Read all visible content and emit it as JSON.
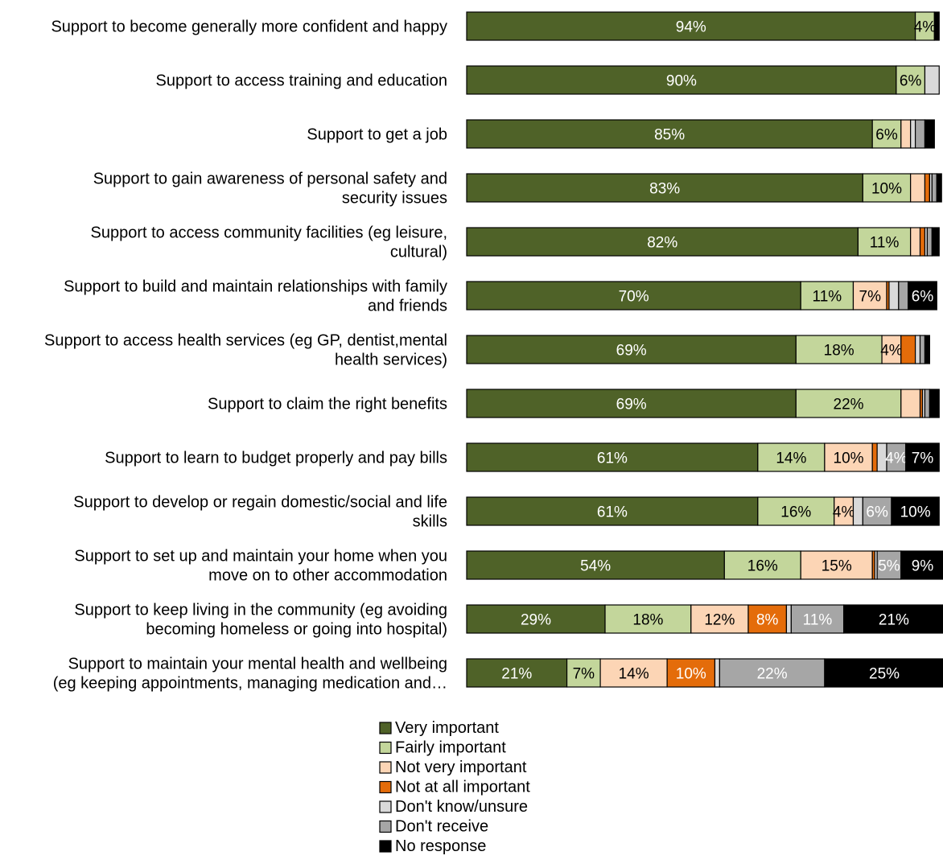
{
  "chart_data": {
    "type": "bar",
    "orientation": "horizontal",
    "stacked": true,
    "xlim": [
      0,
      100
    ],
    "grid": false,
    "legend_position": "bottom",
    "categories": [
      "Support to become generally more confident and happy",
      "Support to access training and education",
      "Support to get a job",
      "Support to gain awareness of personal safety and security issues",
      "Support to access community facilities (eg leisure, cultural)",
      "Support to build and maintain relationships with family and friends",
      "Support to access health services (eg GP, dentist,mental health services)",
      "Support to claim the right benefits",
      "Support to learn to budget properly and pay bills",
      "Support to develop or regain domestic/social and life skills",
      "Support to set up and maintain your home when you move on to other accommodation",
      "Support to keep living in the community (eg avoiding becoming homeless or going into hospital)",
      "Support to maintain your mental health and wellbeing (eg keeping appointments, managing medication and…"
    ],
    "category_lines": [
      [
        "Support to become generally more confident and happy"
      ],
      [
        "Support to access training and education"
      ],
      [
        "Support to get a job"
      ],
      [
        "Support to gain awareness of personal safety and",
        "security issues"
      ],
      [
        "Support to access community facilities (eg leisure,",
        "cultural)"
      ],
      [
        "Support to build and maintain relationships with family",
        "and friends"
      ],
      [
        "Support to access health services (eg GP, dentist,mental",
        "health services)"
      ],
      [
        "Support to claim the right benefits"
      ],
      [
        "Support to learn to budget properly and pay bills"
      ],
      [
        "Support to develop or regain domestic/social and life",
        "skills"
      ],
      [
        "Support to set up and maintain your home when you",
        "move on to other accommodation"
      ],
      [
        "Support to keep living in the community (eg avoiding",
        "becoming homeless or going into hospital)"
      ],
      [
        "Support to maintain your mental health and wellbeing",
        "(eg keeping appointments, managing medication and…"
      ]
    ],
    "series": [
      {
        "name": "Very important",
        "color": "#4f6228",
        "label_color": "#ffffff",
        "values": [
          94,
          90,
          85,
          83,
          82,
          70,
          69,
          69,
          61,
          61,
          54,
          29,
          21
        ],
        "labels": [
          "94%",
          "90%",
          "85%",
          "83%",
          "82%",
          "70%",
          "69%",
          "69%",
          "61%",
          "61%",
          "54%",
          "29%",
          "21%"
        ]
      },
      {
        "name": "Fairly important",
        "color": "#c3d69b",
        "label_color": "#000000",
        "values": [
          4,
          6,
          6,
          10,
          11,
          11,
          18,
          22,
          14,
          16,
          16,
          18,
          7
        ],
        "labels": [
          "4%",
          "6%",
          "6%",
          "10%",
          "11%",
          "11%",
          "18%",
          "22%",
          "14%",
          "16%",
          "16%",
          "18%",
          "7%"
        ]
      },
      {
        "name": "Not very important",
        "color": "#fcd5b5",
        "label_color": "#000000",
        "values": [
          0,
          0,
          2,
          3,
          2,
          7,
          4,
          4,
          10,
          4,
          15,
          12,
          14
        ],
        "labels": [
          "",
          "",
          "",
          "",
          "",
          "7%",
          "4%",
          "",
          "10%",
          "4%",
          "15%",
          "12%",
          "14%"
        ]
      },
      {
        "name": "Not at all important",
        "color": "#e46c0a",
        "label_color": "#ffffff",
        "values": [
          0,
          0,
          0,
          1,
          1,
          0.5,
          3,
          0.5,
          1,
          0,
          0.5,
          8,
          10
        ],
        "labels": [
          "",
          "",
          "",
          "",
          "",
          "",
          "",
          "",
          "",
          "",
          "",
          "8%",
          "10%"
        ]
      },
      {
        "name": "Don't know/unsure",
        "color": "#d9d9d9",
        "label_color": "#000000",
        "values": [
          0,
          3,
          1,
          0.5,
          0.5,
          2,
          1,
          0.5,
          2,
          2,
          0.5,
          1,
          1
        ],
        "labels": [
          "",
          "",
          "",
          "",
          "",
          "",
          "",
          "",
          "",
          "",
          "",
          "",
          ""
        ]
      },
      {
        "name": "Don't receive",
        "color": "#a6a6a6",
        "label_color": "#ffffff",
        "values": [
          0,
          0,
          2,
          1,
          1,
          2,
          1,
          1,
          4,
          6,
          5,
          11,
          22
        ],
        "labels": [
          "",
          "",
          "",
          "",
          "",
          "",
          "",
          "",
          "4%",
          "6%",
          "5%",
          "11%",
          "22%"
        ]
      },
      {
        "name": "No response",
        "color": "#000000",
        "label_color": "#ffffff",
        "values": [
          1,
          0,
          2,
          1,
          1.5,
          6,
          1,
          2,
          7,
          10,
          9,
          21,
          25
        ],
        "labels": [
          "",
          "",
          "",
          "",
          "",
          "6%",
          "",
          "",
          "7%",
          "10%",
          "9%",
          "21%",
          "25%"
        ]
      }
    ]
  }
}
